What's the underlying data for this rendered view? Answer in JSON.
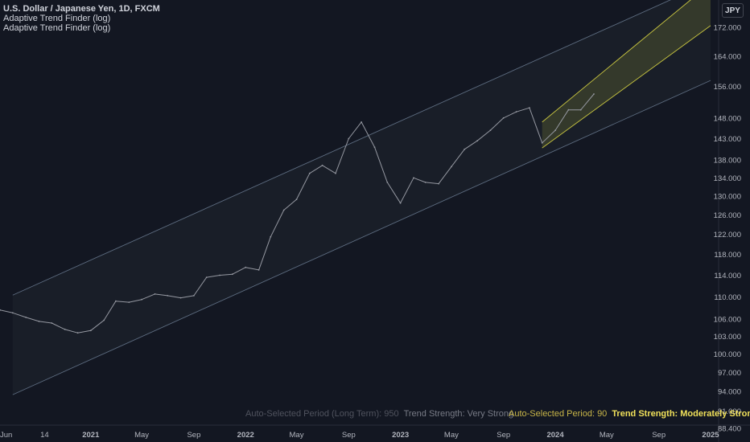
{
  "header": {
    "symbol_title": "U.S. Dollar / Japanese Yen, 1D, FXCM",
    "indicator_1": "Adaptive Trend Finder (log)",
    "indicator_2": "Adaptive Trend Finder (log)"
  },
  "price_scale": {
    "currency": "JPY"
  },
  "status": {
    "long_term_period": "Auto-Selected Period (Long Term): 950",
    "long_term_strength": "Trend Strength: Very Strong",
    "short_term_period": "Auto-Selected Period: 90",
    "short_term_strength": "Trend Strength: Moderately Strong"
  },
  "colors": {
    "background": "#131722",
    "price_line": "#9598a1",
    "long_channel": "#5c6b7f",
    "short_channel": "#c9c640",
    "axis_text": "#b2b5be"
  },
  "chart_data": {
    "type": "line",
    "y_scale": "log",
    "ylim": [
      88.4,
      177.0
    ],
    "y_ticks": [
      "88.400",
      "91.000",
      "94.000",
      "97.000",
      "100.000",
      "103.000",
      "106.000",
      "110.000",
      "114.000",
      "118.000",
      "122.000",
      "126.000",
      "130.000",
      "134.000",
      "138.000",
      "143.000",
      "148.000",
      "156.000",
      "164.000",
      "172.000"
    ],
    "x_ticks": [
      "Jun",
      "14",
      "2021",
      "May",
      "Sep",
      "2022",
      "May",
      "Sep",
      "2023",
      "May",
      "Sep",
      "2024",
      "May",
      "Sep",
      "2025"
    ],
    "grid": false,
    "series": [
      {
        "x": [
          "2020-06-01",
          "2020-07-01",
          "2020-08-01",
          "2020-09-01",
          "2020-10-01",
          "2020-11-01",
          "2020-12-01",
          "2021-01-01",
          "2021-02-01",
          "2021-03-01",
          "2021-04-01",
          "2021-05-01",
          "2021-06-01",
          "2021-07-01",
          "2021-08-01",
          "2021-09-01",
          "2021-10-01",
          "2021-11-01",
          "2021-12-01",
          "2022-01-01",
          "2022-02-01",
          "2022-03-01",
          "2022-04-01",
          "2022-05-01",
          "2022-06-01",
          "2022-07-01",
          "2022-08-01",
          "2022-09-01",
          "2022-10-01",
          "2022-11-01",
          "2022-12-01",
          "2023-01-01",
          "2023-02-01",
          "2023-03-01",
          "2023-04-01",
          "2023-05-01",
          "2023-06-01",
          "2023-07-01",
          "2023-08-01",
          "2023-09-01",
          "2023-10-01",
          "2023-11-01",
          "2023-12-01",
          "2024-01-01",
          "2024-02-01",
          "2024-03-01",
          "2024-04-01"
        ],
        "values": [
          107.6,
          107.1,
          106.3,
          105.6,
          105.3,
          104.2,
          103.6,
          104.0,
          105.8,
          109.2,
          109.0,
          109.5,
          110.5,
          110.2,
          109.8,
          110.2,
          113.6,
          114.0,
          114.2,
          115.5,
          115.0,
          121.5,
          127.0,
          129.3,
          135.0,
          136.8,
          135.0,
          143.0,
          147.0,
          141.0,
          133.0,
          128.5,
          134.0,
          133.0,
          132.7,
          136.5,
          140.5,
          142.5,
          145.0,
          148.0,
          149.5,
          150.5,
          142.0,
          145.0,
          150.0,
          150.0,
          154.0
        ]
      }
    ],
    "long_term_channel": {
      "start": "2020-07-01",
      "end": "2025-01-01",
      "upper_start": 110.3,
      "upper_end": 185.5,
      "lower_start": 93.5,
      "lower_end": 157.5
    },
    "short_term_channel": {
      "start": "2023-12-01",
      "end": "2025-01-01",
      "upper_start": 147.0,
      "upper_end": 185.0,
      "lower_start": 140.8,
      "lower_end": 172.5
    },
    "annotations": [
      "Auto-Selected Period (Long Term): 950",
      "Trend Strength: Very Strong",
      "Auto-Selected Period: 90",
      "Trend Strength: Moderately Strong"
    ]
  }
}
